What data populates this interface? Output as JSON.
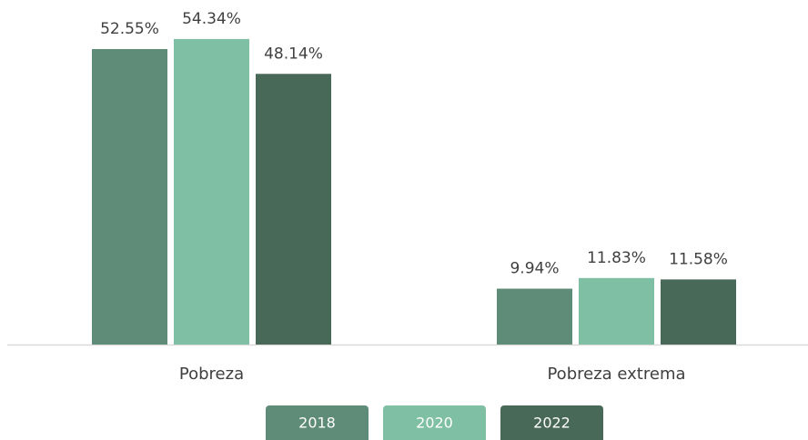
{
  "chart_data": {
    "type": "bar",
    "categories": [
      "Pobreza",
      "Pobreza  extrema"
    ],
    "series": [
      {
        "name": "2018",
        "color": "#5f8c78",
        "values": [
          52.55,
          9.94
        ],
        "value_labels": [
          "52.55%",
          "9.94%"
        ]
      },
      {
        "name": "2020",
        "color": "#7fbfa3",
        "values": [
          54.34,
          11.83
        ],
        "value_labels": [
          "54.34%",
          "11.83%"
        ]
      },
      {
        "name": "2022",
        "color": "#486858",
        "values": [
          48.14,
          11.58
        ],
        "value_labels": [
          "48.14%",
          "11.58%"
        ]
      }
    ]
  }
}
